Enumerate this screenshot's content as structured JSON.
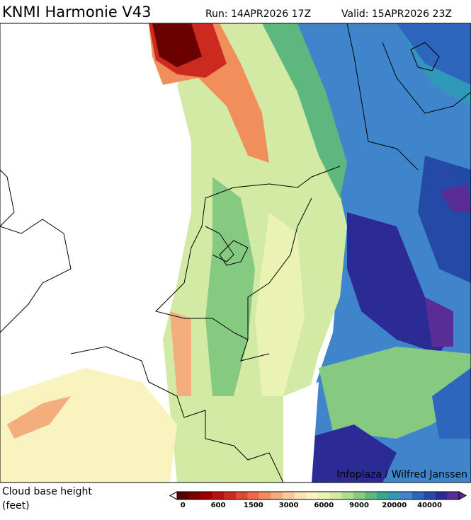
{
  "header": {
    "title": "KNMI Harmonie V43",
    "run": "Run: 14APR2026 17Z",
    "valid": "Valid: 15APR2026 23Z"
  },
  "map": {
    "credit": "Infoplaza / Wilfred Janssen"
  },
  "legend": {
    "label": [
      "Cloud base height",
      "(feet)"
    ],
    "ticks": [
      0,
      600,
      1500,
      3000,
      6000,
      9000,
      20000,
      40000
    ],
    "colors": [
      "#5a0000",
      "#7a0000",
      "#9b0000",
      "#b8100f",
      "#cc2a1e",
      "#dc4a32",
      "#ea6c44",
      "#f08e5c",
      "#f4ad7c",
      "#f8cb9a",
      "#fbe3b2",
      "#f8f3bf",
      "#eaf3b4",
      "#d2eaa4",
      "#b0dc90",
      "#86ca82",
      "#5cb87c",
      "#3ba68c",
      "#3098b8",
      "#3f85cc",
      "#2f66bd",
      "#2549a6",
      "#2c2a94",
      "#5a2c96"
    ],
    "tick_step": 3
  }
}
